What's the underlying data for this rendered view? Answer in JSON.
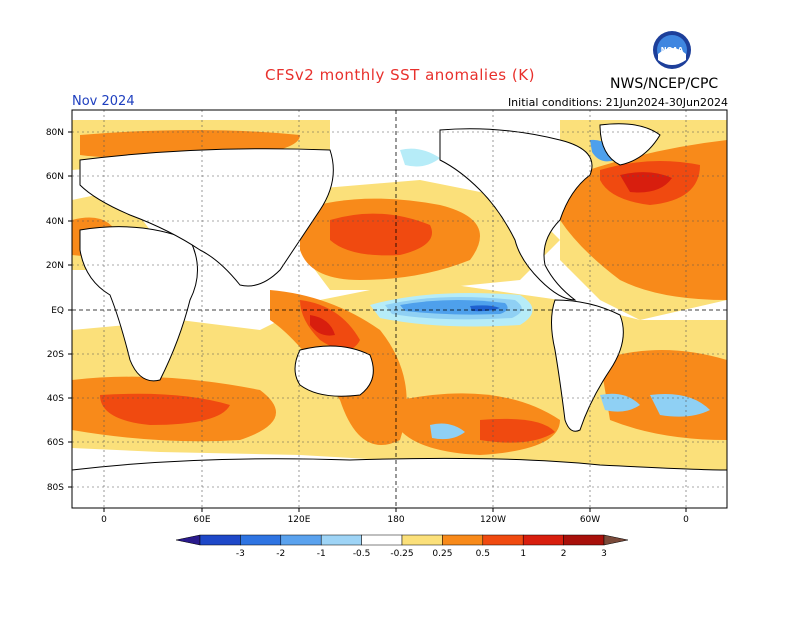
{
  "header": {
    "title": "CFSv2 monthly SST anomalies (K)",
    "agency": "NWS/NCEP/CPC",
    "logo_text": "NOAA",
    "month": "Nov 2024",
    "initial_conditions": "Initial conditions: 21Jun2024-30Jun2024"
  },
  "map": {
    "lat_labels": [
      "80N",
      "60N",
      "40N",
      "20N",
      "EQ",
      "20S",
      "40S",
      "60S",
      "80S"
    ],
    "lon_labels": [
      "0",
      "60E",
      "120E",
      "180",
      "120W",
      "60W",
      "0"
    ],
    "colors": {
      "land": "#ffffff",
      "ocean_neutral": "#ffffff",
      "warm_0_25": "#fbe07a",
      "warm_0_5": "#f88a1a",
      "warm_1": "#f04a10",
      "warm_2": "#d81e0e",
      "warm_3": "#a8100a",
      "cool_0_25": "#b6ecf8",
      "cool_0_5": "#8fd0f4",
      "cool_1": "#4ea0ec",
      "cool_2": "#1e60d0"
    }
  },
  "colorbar": {
    "tick_labels": [
      "-3",
      "-2",
      "-1",
      "-0.5",
      "-0.25",
      "0.25",
      "0.5",
      "1",
      "2",
      "3"
    ],
    "colors": [
      "#2a1a8c",
      "#1e48c8",
      "#2e74e2",
      "#5aa2ee",
      "#9ed4f6",
      "#ffffff",
      "#fbe07a",
      "#f88a1a",
      "#f04a10",
      "#d81e0e",
      "#a8100a",
      "#7a4a3a"
    ]
  }
}
